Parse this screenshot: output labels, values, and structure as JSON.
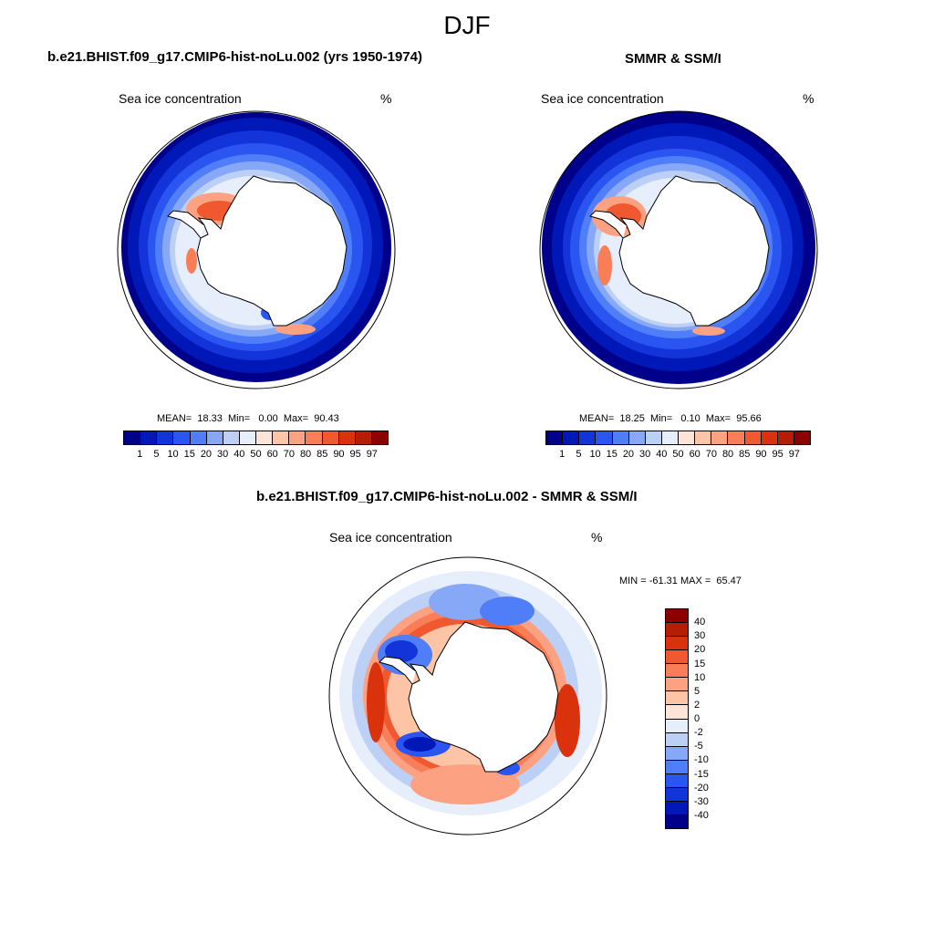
{
  "main_title": "DJF",
  "panels": [
    {
      "title": "b.e21.BHIST.f09_g17.CMIP6-hist-noLu.002 (yrs 1950-1974)",
      "subtitle": "Sea ice concentration",
      "units": "%",
      "stats": {
        "mean_label": "MEAN=",
        "mean": "18.33",
        "min_label": "Min=",
        "min": "0.00",
        "max_label": "Max=",
        "max": "90.43"
      }
    },
    {
      "title": "SMMR & SSM/I",
      "subtitle": "Sea ice concentration",
      "units": "%",
      "stats": {
        "mean_label": "MEAN=",
        "mean": "18.25",
        "min_label": "Min=",
        "min": "0.10",
        "max_label": "Max=",
        "max": "95.66"
      }
    },
    {
      "title": "b.e21.BHIST.f09_g17.CMIP6-hist-noLu.002 - SMMR & SSM/I",
      "subtitle": "Sea ice concentration",
      "units": "%",
      "minmax": "MIN = -61.31 MAX =  65.47"
    }
  ],
  "conc_colorbar": {
    "colors": [
      "#00008a",
      "#0018b8",
      "#1234d8",
      "#2a55f0",
      "#4f7ef8",
      "#86a8f6",
      "#bcd0f6",
      "#e6eefc",
      "#fde4d6",
      "#fdc4a6",
      "#fca283",
      "#f97e58",
      "#f0582f",
      "#d9320c",
      "#b51e05",
      "#8c0000"
    ],
    "labels": [
      "1",
      "5",
      "10",
      "15",
      "20",
      "30",
      "40",
      "50",
      "60",
      "70",
      "80",
      "85",
      "90",
      "95",
      "97"
    ]
  },
  "diff_colorbar": {
    "colors": [
      "#8c0000",
      "#b51e05",
      "#d9320c",
      "#f0582f",
      "#f97e58",
      "#fca283",
      "#fdc4a6",
      "#fde4d6",
      "#e6eefc",
      "#bcd0f6",
      "#86a8f6",
      "#4f7ef8",
      "#2a55f0",
      "#1234d8",
      "#0018b8",
      "#00008a"
    ],
    "labels": [
      "40",
      "30",
      "20",
      "15",
      "10",
      "5",
      "2",
      "0",
      "-2",
      "-5",
      "-10",
      "-15",
      "-20",
      "-30",
      "-40"
    ]
  }
}
